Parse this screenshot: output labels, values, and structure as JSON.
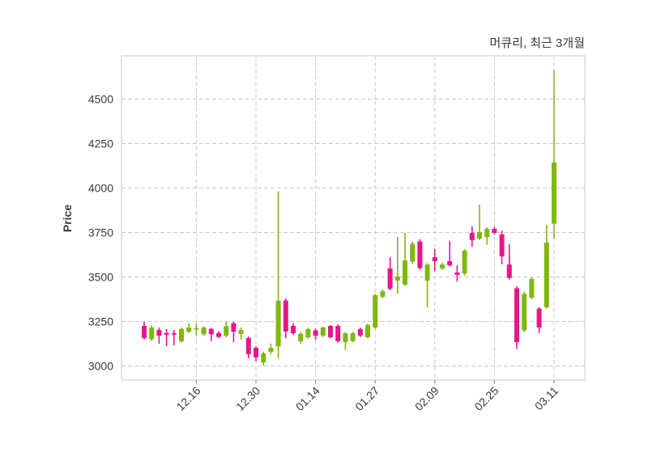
{
  "chart": {
    "title": "머큐리, 최근 3개월",
    "ylabel": "Price",
    "colors": {
      "up": "#7fb80e",
      "down": "#e9168a",
      "grid": "#c9c9c9",
      "border": "#d0d0d0",
      "text": "#3a3a3a",
      "background": "#ffffff"
    }
  },
  "chart_data": {
    "type": "candlestick",
    "title": "머큐리, 최근 3개월",
    "xlabel": "",
    "ylabel": "Price",
    "ylim": [
      2920,
      4745
    ],
    "y_ticks": [
      3000,
      3250,
      3500,
      3750,
      4000,
      4250,
      4500
    ],
    "grid": true,
    "grid_style": "dashed",
    "x_tick_labels": [
      "12.16",
      "12.30",
      "01.14",
      "01.27",
      "02.09",
      "02.25",
      "03.11"
    ],
    "x_tick_indices": [
      7,
      15,
      23,
      31,
      39,
      47,
      55
    ],
    "x_tick_rotation_deg": 45,
    "up_color_meaning": "close above open (green)",
    "down_color_meaning": "close below open (pink)",
    "candle_format": [
      "open",
      "high",
      "low",
      "close"
    ],
    "candles": [
      [
        3225,
        3248,
        3148,
        3157
      ],
      [
        3150,
        3230,
        3140,
        3216
      ],
      [
        3202,
        3216,
        3125,
        3170
      ],
      [
        3185,
        3207,
        3111,
        3175
      ],
      [
        3184,
        3202,
        3116,
        3176
      ],
      [
        3139,
        3216,
        3130,
        3207
      ],
      [
        3193,
        3239,
        3184,
        3216
      ],
      [
        3205,
        3239,
        3170,
        3212
      ],
      [
        3178,
        3222,
        3170,
        3216
      ],
      [
        3208,
        3215,
        3140,
        3178
      ],
      [
        3185,
        3195,
        3155,
        3163
      ],
      [
        3170,
        3248,
        3160,
        3224
      ],
      [
        3239,
        3248,
        3134,
        3193
      ],
      [
        3180,
        3216,
        3148,
        3202
      ],
      [
        3157,
        3165,
        3043,
        3066
      ],
      [
        3102,
        3110,
        3026,
        3048
      ],
      [
        3020,
        3080,
        3002,
        3070
      ],
      [
        3080,
        3125,
        3066,
        3102
      ],
      [
        3110,
        3981,
        3042,
        3367
      ],
      [
        3367,
        3380,
        3157,
        3193
      ],
      [
        3225,
        3240,
        3175,
        3184
      ],
      [
        3139,
        3190,
        3125,
        3180
      ],
      [
        3161,
        3215,
        3152,
        3207
      ],
      [
        3200,
        3210,
        3148,
        3170
      ],
      [
        3170,
        3222,
        3162,
        3216
      ],
      [
        3225,
        3230,
        3155,
        3161
      ],
      [
        3225,
        3233,
        3131,
        3139
      ],
      [
        3134,
        3190,
        3089,
        3184
      ],
      [
        3139,
        3192,
        3133,
        3184
      ],
      [
        3207,
        3215,
        3162,
        3170
      ],
      [
        3161,
        3237,
        3155,
        3230
      ],
      [
        3216,
        3405,
        3210,
        3398
      ],
      [
        3389,
        3430,
        3380,
        3420
      ],
      [
        3548,
        3611,
        3425,
        3434
      ],
      [
        3480,
        3725,
        3407,
        3502
      ],
      [
        3457,
        3748,
        3450,
        3593
      ],
      [
        3587,
        3700,
        3575,
        3686
      ],
      [
        3700,
        3712,
        3540,
        3550
      ],
      [
        3480,
        3578,
        3330,
        3570
      ],
      [
        3611,
        3657,
        3534,
        3589
      ],
      [
        3548,
        3580,
        3540,
        3570
      ],
      [
        3589,
        3702,
        3558,
        3566
      ],
      [
        3525,
        3566,
        3475,
        3512
      ],
      [
        3520,
        3658,
        3508,
        3648
      ],
      [
        3748,
        3784,
        3670,
        3707
      ],
      [
        3716,
        3907,
        3708,
        3752
      ],
      [
        3725,
        3780,
        3680,
        3770
      ],
      [
        3770,
        3782,
        3738,
        3748
      ],
      [
        3739,
        3760,
        3570,
        3616
      ],
      [
        3570,
        3684,
        3485,
        3495
      ],
      [
        3436,
        3448,
        3095,
        3133
      ],
      [
        3200,
        3418,
        3190,
        3405
      ],
      [
        3384,
        3497,
        3375,
        3489
      ],
      [
        3322,
        3330,
        3185,
        3216
      ],
      [
        3330,
        3793,
        3322,
        3693
      ],
      [
        3799,
        4663,
        3716,
        4143
      ]
    ]
  }
}
